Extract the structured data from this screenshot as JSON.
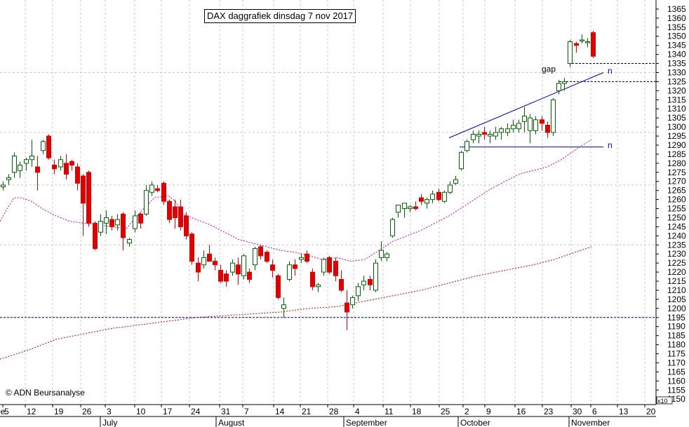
{
  "chart_data": {
    "type": "candlestick",
    "title": "DAX daggrafiek dinsdag 7 nov 2017",
    "copyright": "© ADN Beursanalyse",
    "y_axis": {
      "ticks": [
        1150,
        1155,
        1160,
        1165,
        1170,
        1175,
        1180,
        1185,
        1190,
        1195,
        1200,
        1205,
        1210,
        1215,
        1220,
        1225,
        1230,
        1235,
        1240,
        1245,
        1250,
        1255,
        1260,
        1265,
        1270,
        1275,
        1280,
        1285,
        1290,
        1295,
        1300,
        1305,
        1310,
        1315,
        1320,
        1325,
        1330,
        1335,
        1340,
        1345,
        1350,
        1355,
        1360,
        1365
      ],
      "range": [
        1147,
        1370
      ],
      "multiplier_label": "x10"
    },
    "x_axis": {
      "day_labels": [
        "5",
        "12",
        "19",
        "26",
        "3",
        "10",
        "17",
        "24",
        "31",
        "7",
        "14",
        "21",
        "28",
        "4",
        "11",
        "18",
        "25",
        "2",
        "9",
        "16",
        "23",
        "30",
        "6",
        "13",
        "20"
      ],
      "month_labels": [
        "July",
        "August",
        "September",
        "October",
        "November"
      ],
      "partial_label": "ne"
    },
    "candles": [
      {
        "o": 1267,
        "h": 1270,
        "l": 1265,
        "c": 1268
      },
      {
        "o": 1271,
        "h": 1274,
        "l": 1268,
        "c": 1272
      },
      {
        "o": 1275,
        "h": 1286,
        "l": 1272,
        "c": 1284
      },
      {
        "o": 1276,
        "h": 1281,
        "l": 1272,
        "c": 1279
      },
      {
        "o": 1280,
        "h": 1283,
        "l": 1276,
        "c": 1282
      },
      {
        "o": 1282,
        "h": 1293,
        "l": 1278,
        "c": 1284
      },
      {
        "o": 1278,
        "h": 1284,
        "l": 1265,
        "c": 1275
      },
      {
        "o": 1287,
        "h": 1293,
        "l": 1285,
        "c": 1292
      },
      {
        "o": 1295,
        "h": 1296,
        "l": 1282,
        "c": 1283
      },
      {
        "o": 1279,
        "h": 1282,
        "l": 1274,
        "c": 1277
      },
      {
        "o": 1278,
        "h": 1284,
        "l": 1276,
        "c": 1282
      },
      {
        "o": 1280,
        "h": 1285,
        "l": 1271,
        "c": 1274
      },
      {
        "o": 1281,
        "h": 1282,
        "l": 1276,
        "c": 1279
      },
      {
        "o": 1278,
        "h": 1280,
        "l": 1265,
        "c": 1269
      },
      {
        "o": 1273,
        "h": 1274,
        "l": 1240,
        "c": 1258
      },
      {
        "o": 1275,
        "h": 1276,
        "l": 1245,
        "c": 1247
      },
      {
        "o": 1247,
        "h": 1248,
        "l": 1232,
        "c": 1233
      },
      {
        "o": 1242,
        "h": 1252,
        "l": 1240,
        "c": 1248
      },
      {
        "o": 1247,
        "h": 1254,
        "l": 1241,
        "c": 1250
      },
      {
        "o": 1249,
        "h": 1251,
        "l": 1243,
        "c": 1245
      },
      {
        "o": 1246,
        "h": 1252,
        "l": 1243,
        "c": 1249
      },
      {
        "o": 1252,
        "h": 1253,
        "l": 1232,
        "c": 1239
      },
      {
        "o": 1236,
        "h": 1239,
        "l": 1234,
        "c": 1238
      },
      {
        "o": 1244,
        "h": 1254,
        "l": 1242,
        "c": 1251
      },
      {
        "o": 1252,
        "h": 1253,
        "l": 1244,
        "c": 1247
      },
      {
        "o": 1252,
        "h": 1268,
        "l": 1251,
        "c": 1265
      },
      {
        "o": 1264,
        "h": 1270,
        "l": 1262,
        "c": 1268
      },
      {
        "o": 1266,
        "h": 1268,
        "l": 1264,
        "c": 1265
      },
      {
        "o": 1269,
        "h": 1270,
        "l": 1257,
        "c": 1259
      },
      {
        "o": 1259,
        "h": 1260,
        "l": 1247,
        "c": 1249
      },
      {
        "o": 1256,
        "h": 1260,
        "l": 1244,
        "c": 1250
      },
      {
        "o": 1256,
        "h": 1260,
        "l": 1243,
        "c": 1245
      },
      {
        "o": 1251,
        "h": 1253,
        "l": 1238,
        "c": 1240
      },
      {
        "o": 1241,
        "h": 1242,
        "l": 1224,
        "c": 1226
      },
      {
        "o": 1225,
        "h": 1228,
        "l": 1215,
        "c": 1220
      },
      {
        "o": 1224,
        "h": 1232,
        "l": 1222,
        "c": 1228
      },
      {
        "o": 1230,
        "h": 1235,
        "l": 1226,
        "c": 1226
      },
      {
        "o": 1226,
        "h": 1228,
        "l": 1221,
        "c": 1224
      },
      {
        "o": 1221,
        "h": 1224,
        "l": 1214,
        "c": 1215
      },
      {
        "o": 1219,
        "h": 1221,
        "l": 1212,
        "c": 1215
      },
      {
        "o": 1220,
        "h": 1227,
        "l": 1218,
        "c": 1225
      },
      {
        "o": 1224,
        "h": 1228,
        "l": 1213,
        "c": 1219
      },
      {
        "o": 1218,
        "h": 1230,
        "l": 1216,
        "c": 1229
      },
      {
        "o": 1220,
        "h": 1222,
        "l": 1214,
        "c": 1216
      },
      {
        "o": 1224,
        "h": 1234,
        "l": 1221,
        "c": 1233
      },
      {
        "o": 1234,
        "h": 1235,
        "l": 1227,
        "c": 1229
      },
      {
        "o": 1231,
        "h": 1232,
        "l": 1225,
        "c": 1226
      },
      {
        "o": 1224,
        "h": 1227,
        "l": 1217,
        "c": 1221
      },
      {
        "o": 1218,
        "h": 1219,
        "l": 1205,
        "c": 1206
      },
      {
        "o": 1200,
        "h": 1206,
        "l": 1195,
        "c": 1202
      },
      {
        "o": 1216,
        "h": 1226,
        "l": 1215,
        "c": 1224
      },
      {
        "o": 1224,
        "h": 1227,
        "l": 1218,
        "c": 1222
      },
      {
        "o": 1227,
        "h": 1230,
        "l": 1225,
        "c": 1228
      },
      {
        "o": 1230,
        "h": 1232,
        "l": 1225,
        "c": 1226
      },
      {
        "o": 1220,
        "h": 1222,
        "l": 1210,
        "c": 1212
      },
      {
        "o": 1212,
        "h": 1214,
        "l": 1209,
        "c": 1213
      },
      {
        "o": 1220,
        "h": 1228,
        "l": 1218,
        "c": 1227
      },
      {
        "o": 1228,
        "h": 1229,
        "l": 1219,
        "c": 1220
      },
      {
        "o": 1226,
        "h": 1228,
        "l": 1215,
        "c": 1218
      },
      {
        "o": 1216,
        "h": 1221,
        "l": 1209,
        "c": 1210
      },
      {
        "o": 1203,
        "h": 1210,
        "l": 1188,
        "c": 1198
      },
      {
        "o": 1202,
        "h": 1207,
        "l": 1200,
        "c": 1206
      },
      {
        "o": 1207,
        "h": 1214,
        "l": 1204,
        "c": 1212
      },
      {
        "o": 1213,
        "h": 1218,
        "l": 1210,
        "c": 1215
      },
      {
        "o": 1216,
        "h": 1218,
        "l": 1210,
        "c": 1213
      },
      {
        "o": 1210,
        "h": 1227,
        "l": 1209,
        "c": 1225
      },
      {
        "o": 1228,
        "h": 1237,
        "l": 1226,
        "c": 1232
      },
      {
        "o": 1228,
        "h": 1231,
        "l": 1226,
        "c": 1230
      },
      {
        "o": 1240,
        "h": 1250,
        "l": 1239,
        "c": 1249
      },
      {
        "o": 1253,
        "h": 1257,
        "l": 1250,
        "c": 1257
      },
      {
        "o": 1255,
        "h": 1258,
        "l": 1250,
        "c": 1258
      },
      {
        "o": 1255,
        "h": 1257,
        "l": 1253,
        "c": 1256
      },
      {
        "o": 1256,
        "h": 1259,
        "l": 1254,
        "c": 1255
      },
      {
        "o": 1261,
        "h": 1263,
        "l": 1257,
        "c": 1259
      },
      {
        "o": 1258,
        "h": 1261,
        "l": 1255,
        "c": 1260
      },
      {
        "o": 1260,
        "h": 1265,
        "l": 1258,
        "c": 1263
      },
      {
        "o": 1264,
        "h": 1266,
        "l": 1259,
        "c": 1260
      },
      {
        "o": 1259,
        "h": 1265,
        "l": 1258,
        "c": 1264
      },
      {
        "o": 1264,
        "h": 1270,
        "l": 1263,
        "c": 1268
      },
      {
        "o": 1269,
        "h": 1273,
        "l": 1268,
        "c": 1271
      },
      {
        "o": 1277,
        "h": 1287,
        "l": 1276,
        "c": 1286
      },
      {
        "o": 1287,
        "h": 1293,
        "l": 1286,
        "c": 1292
      },
      {
        "o": 1293,
        "h": 1298,
        "l": 1291,
        "c": 1296
      },
      {
        "o": 1295,
        "h": 1298,
        "l": 1291,
        "c": 1296
      },
      {
        "o": 1297,
        "h": 1300,
        "l": 1293,
        "c": 1296
      },
      {
        "o": 1295,
        "h": 1298,
        "l": 1291,
        "c": 1296
      },
      {
        "o": 1295,
        "h": 1300,
        "l": 1293,
        "c": 1297
      },
      {
        "o": 1297,
        "h": 1300,
        "l": 1293,
        "c": 1299
      },
      {
        "o": 1297,
        "h": 1302,
        "l": 1295,
        "c": 1299
      },
      {
        "o": 1299,
        "h": 1304,
        "l": 1297,
        "c": 1301
      },
      {
        "o": 1299,
        "h": 1304,
        "l": 1297,
        "c": 1302
      },
      {
        "o": 1303,
        "h": 1311,
        "l": 1297,
        "c": 1306
      },
      {
        "o": 1298,
        "h": 1307,
        "l": 1291,
        "c": 1305
      },
      {
        "o": 1298,
        "h": 1306,
        "l": 1296,
        "c": 1304
      },
      {
        "o": 1304,
        "h": 1306,
        "l": 1298,
        "c": 1302
      },
      {
        "o": 1301,
        "h": 1303,
        "l": 1294,
        "c": 1297
      },
      {
        "o": 1297,
        "h": 1316,
        "l": 1295,
        "c": 1315
      },
      {
        "o": 1320,
        "h": 1326,
        "l": 1318,
        "c": 1324
      },
      {
        "o": 1324,
        "h": 1327,
        "l": 1320,
        "c": 1325
      },
      {
        "o": 1335,
        "h": 1348,
        "l": 1333,
        "c": 1347
      },
      {
        "o": 1346,
        "h": 1347,
        "l": 1341,
        "c": 1345
      },
      {
        "o": 1348,
        "h": 1351,
        "l": 1346,
        "c": 1348
      },
      {
        "o": 1347,
        "h": 1349,
        "l": 1344,
        "c": 1347
      },
      {
        "o": 1352,
        "h": 1353,
        "l": 1338,
        "c": 1339
      }
    ],
    "series": [
      {
        "name": "",
        "color": "#cc00cc",
        "style": "dotted",
        "points": [
          [
            0,
            1248
          ],
          [
            10,
            1255
          ],
          [
            20,
            1261
          ],
          [
            30,
            1261
          ],
          [
            45,
            1259
          ],
          [
            60,
            1255
          ],
          [
            80,
            1251
          ],
          [
            100,
            1248
          ],
          [
            120,
            1247
          ],
          [
            140,
            1246
          ],
          [
            160,
            1245
          ],
          [
            180,
            1244
          ],
          [
            200,
            1253
          ],
          [
            220,
            1261
          ],
          [
            240,
            1262
          ],
          [
            250,
            1259
          ],
          [
            260,
            1252
          ],
          [
            280,
            1249
          ],
          [
            300,
            1246
          ],
          [
            320,
            1242
          ],
          [
            340,
            1238
          ],
          [
            360,
            1236
          ],
          [
            380,
            1234
          ],
          [
            400,
            1232
          ],
          [
            420,
            1231
          ],
          [
            440,
            1229
          ],
          [
            460,
            1227
          ],
          [
            480,
            1228
          ],
          [
            500,
            1226
          ],
          [
            520,
            1227
          ],
          [
            540,
            1232
          ],
          [
            560,
            1237
          ],
          [
            580,
            1240
          ],
          [
            600,
            1243
          ],
          [
            620,
            1247
          ],
          [
            640,
            1251
          ],
          [
            660,
            1256
          ],
          [
            680,
            1261
          ],
          [
            700,
            1266
          ],
          [
            720,
            1270
          ],
          [
            740,
            1274
          ],
          [
            760,
            1276
          ],
          [
            780,
            1278
          ],
          [
            800,
            1282
          ],
          [
            815,
            1286
          ],
          [
            830,
            1290
          ],
          [
            843,
            1293
          ]
        ]
      },
      {
        "name": "",
        "color": "#cc0000",
        "style": "dotted",
        "points": [
          [
            0,
            1172
          ],
          [
            40,
            1177
          ],
          [
            80,
            1183
          ],
          [
            120,
            1186
          ],
          [
            160,
            1189
          ],
          [
            200,
            1191
          ],
          [
            240,
            1193
          ],
          [
            280,
            1195
          ],
          [
            320,
            1196
          ],
          [
            360,
            1197
          ],
          [
            400,
            1198
          ],
          [
            440,
            1200
          ],
          [
            480,
            1201
          ],
          [
            520,
            1204
          ],
          [
            560,
            1207
          ],
          [
            600,
            1210
          ],
          [
            640,
            1214
          ],
          [
            680,
            1218
          ],
          [
            720,
            1221
          ],
          [
            760,
            1224
          ],
          [
            790,
            1227
          ],
          [
            820,
            1231
          ],
          [
            843,
            1234
          ]
        ]
      }
    ],
    "horizontal_lines": [
      {
        "y": 1195,
        "color": "#000099",
        "style": "dashed",
        "x_from": 0,
        "x_to": 935
      },
      {
        "y": 1335,
        "color": "#000000",
        "style": "dashed",
        "x_from": 810,
        "x_to": 935
      },
      {
        "y": 1325,
        "color": "#000000",
        "style": "dashed",
        "x_from": 797,
        "x_to": 935
      }
    ],
    "trendlines": [
      {
        "from": [
          640,
          1294
        ],
        "to": [
          860,
          1330
        ],
        "color": "#0000cc"
      },
      {
        "from": [
          655,
          1289
        ],
        "to": [
          860,
          1289
        ],
        "color": "#0000cc"
      }
    ],
    "annotations": [
      {
        "text": "gap",
        "x": 772,
        "y": 1332
      },
      {
        "text": "n",
        "x": 866,
        "y": 1331,
        "color": "#0000cc"
      },
      {
        "text": "n",
        "x": 866,
        "y": 1290,
        "color": "#0000cc"
      }
    ],
    "ygrid": [
      1195,
      1235,
      1268,
      1297,
      1330
    ],
    "grid": true
  }
}
